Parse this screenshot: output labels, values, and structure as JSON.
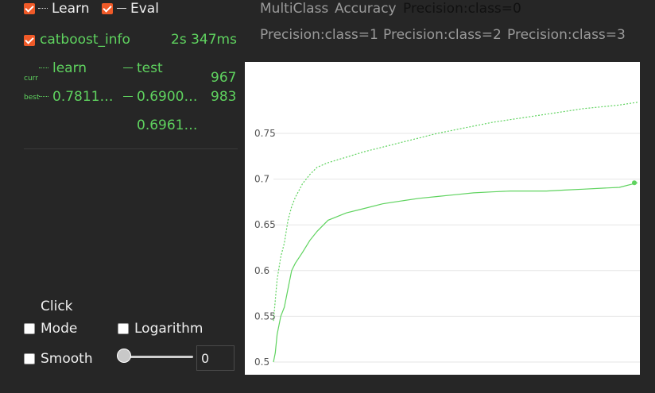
{
  "legend": {
    "learn_label": "Learn",
    "eval_label": "Eval"
  },
  "run": {
    "name": "catboost_info",
    "time": "2s 347ms"
  },
  "stats": {
    "curr_label": "curr",
    "best_label": "best",
    "learn_header": "learn",
    "test_header": "test",
    "curr_iter": "967",
    "best_learn": "0.7811…",
    "best_test": "0.6900…",
    "best_iter": "983",
    "extra_value": "0.6961…"
  },
  "metric_tabs": [
    {
      "label": "MultiClass",
      "active": false
    },
    {
      "label": "Accuracy",
      "active": false
    },
    {
      "label": "Precision:class=0",
      "active": true
    },
    {
      "label": "Precision:class=1",
      "active": false
    },
    {
      "label": "Precision:class=2",
      "active": false
    },
    {
      "label": "Precision:class=3",
      "active": false
    }
  ],
  "controls": {
    "click_label": "Click",
    "mode_label": "Mode",
    "logarithm_label": "Logarithm",
    "smooth_label": "Smooth",
    "smooth_value": "0"
  },
  "colors": {
    "accent": "#f05a28",
    "series": "#5fd35f",
    "background": "#262626"
  },
  "chart_data": {
    "type": "line",
    "ylim": [
      0.49,
      0.8
    ],
    "xlim": [
      0,
      1000
    ],
    "yticks": [
      "0.5",
      "0.55",
      "0.6",
      "0.65",
      "0.7",
      "0.75"
    ],
    "grid": true,
    "series": [
      {
        "style": "dotted",
        "x": [
          0,
          10,
          20,
          30,
          40,
          50,
          60,
          80,
          100,
          120,
          150,
          200,
          250,
          300,
          350,
          400,
          450,
          500,
          550,
          600,
          650,
          700,
          750,
          800,
          850,
          900,
          950,
          1000
        ],
        "values": [
          0.545,
          0.59,
          0.615,
          0.63,
          0.655,
          0.67,
          0.68,
          0.695,
          0.705,
          0.713,
          0.718,
          0.724,
          0.73,
          0.735,
          0.74,
          0.745,
          0.75,
          0.754,
          0.758,
          0.762,
          0.765,
          0.768,
          0.771,
          0.774,
          0.777,
          0.779,
          0.781,
          0.784
        ]
      },
      {
        "style": "solid",
        "x": [
          0,
          5,
          10,
          20,
          30,
          40,
          50,
          60,
          80,
          100,
          120,
          150,
          200,
          250,
          300,
          350,
          400,
          450,
          500,
          550,
          600,
          650,
          700,
          750,
          800,
          850,
          900,
          950,
          1000
        ],
        "values": [
          0.5,
          0.51,
          0.53,
          0.55,
          0.56,
          0.58,
          0.6,
          0.608,
          0.62,
          0.633,
          0.643,
          0.655,
          0.663,
          0.668,
          0.673,
          0.676,
          0.679,
          0.681,
          0.683,
          0.685,
          0.686,
          0.687,
          0.687,
          0.687,
          0.688,
          0.689,
          0.69,
          0.691,
          0.696
        ]
      }
    ],
    "marker": {
      "x": 1000,
      "y": 0.696
    }
  }
}
